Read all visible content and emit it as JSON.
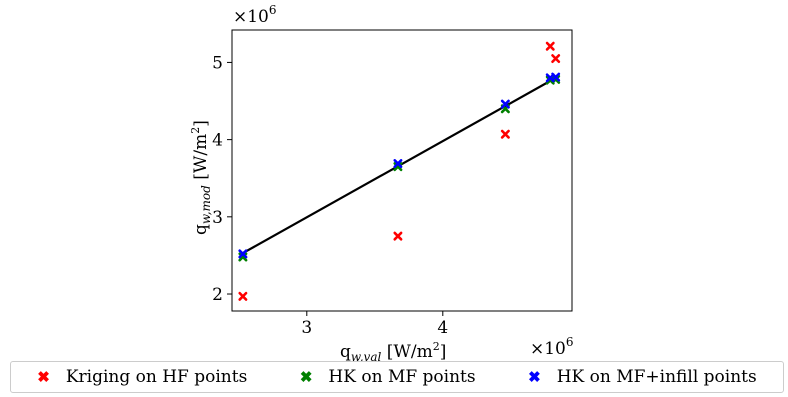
{
  "chart_data": {
    "type": "scatter",
    "xlabel_main": "q",
    "xlabel_sub": "w,val",
    "xlabel_unit": " [W/m",
    "xlabel_exp": "2",
    "xlabel_close": "]",
    "ylabel_main": "q",
    "ylabel_sub": "w,mod",
    "ylabel_unit": " [W/m",
    "ylabel_exp": "2",
    "ylabel_close": "]",
    "x_offset_base": "×10",
    "x_offset_exp": "6",
    "y_offset_base": "×10",
    "y_offset_exp": "6",
    "xlim": [
      2.45,
      4.95
    ],
    "ylim": [
      1.78,
      5.42
    ],
    "x_ticks": [
      3,
      4
    ],
    "y_ticks": [
      2,
      3,
      4,
      5
    ],
    "x_tick_labels": [
      "3",
      "4"
    ],
    "y_tick_labels": [
      "2",
      "3",
      "4",
      "5"
    ],
    "reference_line": {
      "x": [
        2.53,
        4.83
      ],
      "y": [
        2.53,
        4.8
      ],
      "color": "#000000"
    },
    "legend_position": "bottom",
    "series": [
      {
        "name": "Kriging on HF points",
        "color": "#ff0000",
        "points": [
          {
            "x": 2.53,
            "y": 1.97
          },
          {
            "x": 3.67,
            "y": 2.75
          },
          {
            "x": 4.46,
            "y": 4.07
          },
          {
            "x": 4.79,
            "y": 5.21
          },
          {
            "x": 4.83,
            "y": 5.05
          }
        ]
      },
      {
        "name": "HK on MF points",
        "color": "#008000",
        "points": [
          {
            "x": 2.53,
            "y": 2.48
          },
          {
            "x": 3.67,
            "y": 3.65
          },
          {
            "x": 4.46,
            "y": 4.4
          },
          {
            "x": 4.79,
            "y": 4.77
          },
          {
            "x": 4.83,
            "y": 4.78
          }
        ]
      },
      {
        "name": "HK on MF+infill points",
        "color": "#0000ff",
        "points": [
          {
            "x": 2.53,
            "y": 2.52
          },
          {
            "x": 3.67,
            "y": 3.69
          },
          {
            "x": 4.46,
            "y": 4.46
          },
          {
            "x": 4.79,
            "y": 4.8
          },
          {
            "x": 4.83,
            "y": 4.81
          }
        ]
      }
    ]
  }
}
